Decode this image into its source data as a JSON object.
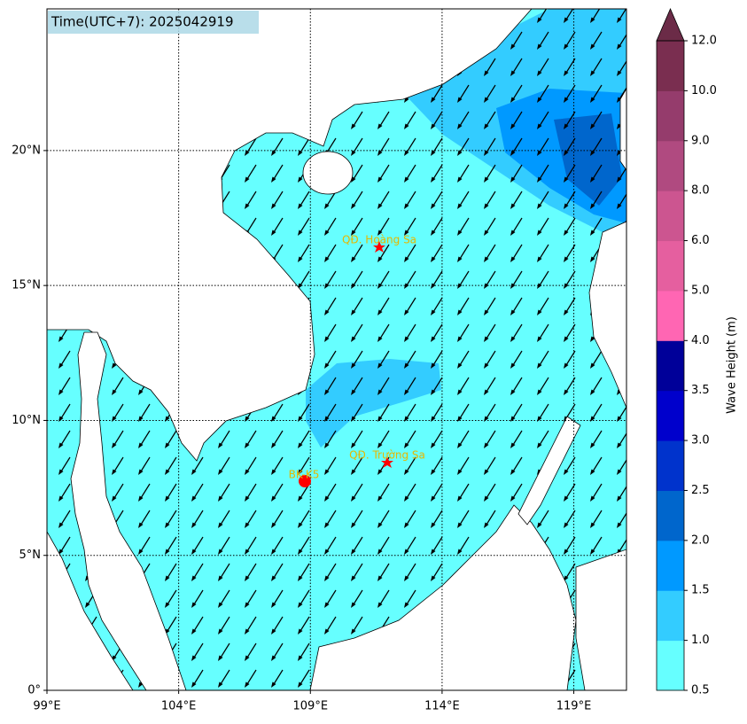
{
  "map": {
    "title": "Time(UTC+7): 2025042919",
    "extent": {
      "lon": [
        99,
        121
      ],
      "lat": [
        0,
        25.25
      ]
    },
    "lon_ticks": [
      {
        "value": 99,
        "label": "99°E"
      },
      {
        "value": 104,
        "label": "104°E"
      },
      {
        "value": 109,
        "label": "109°E"
      },
      {
        "value": 114,
        "label": "114°E"
      },
      {
        "value": 119,
        "label": "119°E"
      }
    ],
    "lat_ticks": [
      {
        "value": 0,
        "label": "0°"
      },
      {
        "value": 5,
        "label": "5°N"
      },
      {
        "value": 10,
        "label": "10°N"
      },
      {
        "value": 15,
        "label": "15°N"
      },
      {
        "value": 20,
        "label": "20°N"
      }
    ],
    "annotations": [
      "QĐ. Hoàng Sa",
      "QĐ. Trường Sa",
      "BK-K5"
    ],
    "colorbar": {
      "label": "Wave Height (m)",
      "ticks": [
        0.5,
        {
          "value": 1,
          "label": "1.0"
        },
        {
          "value": 1.5,
          "label": "1.5"
        },
        {
          "value": 2,
          "label": "2.0"
        },
        {
          "value": 2.5,
          "label": "2.5"
        },
        {
          "value": 3,
          "label": "3.0"
        },
        {
          "value": 3.5,
          "label": "3.5"
        },
        {
          "value": 4,
          "label": "4.0"
        },
        {
          "value": 5,
          "label": "5.0"
        },
        {
          "value": 6,
          "label": "6.0"
        },
        {
          "value": 8,
          "label": "8.0"
        },
        {
          "value": 9,
          "label": "9.0"
        },
        {
          "value": 10,
          "label": "10.0"
        },
        {
          "value": 12,
          "label": "12.0"
        }
      ],
      "colors": [
        "#66ffff",
        "#33ccff",
        "#0099ff",
        "#0066cc",
        "#0033cc",
        "#0000cc",
        "#000099",
        "#ff66b3",
        "#e55f9f",
        "#cc5590",
        "#b04a80",
        "#953c6c",
        "#7a2e50"
      ],
      "extend_color": "#6b2b47"
    }
  }
}
